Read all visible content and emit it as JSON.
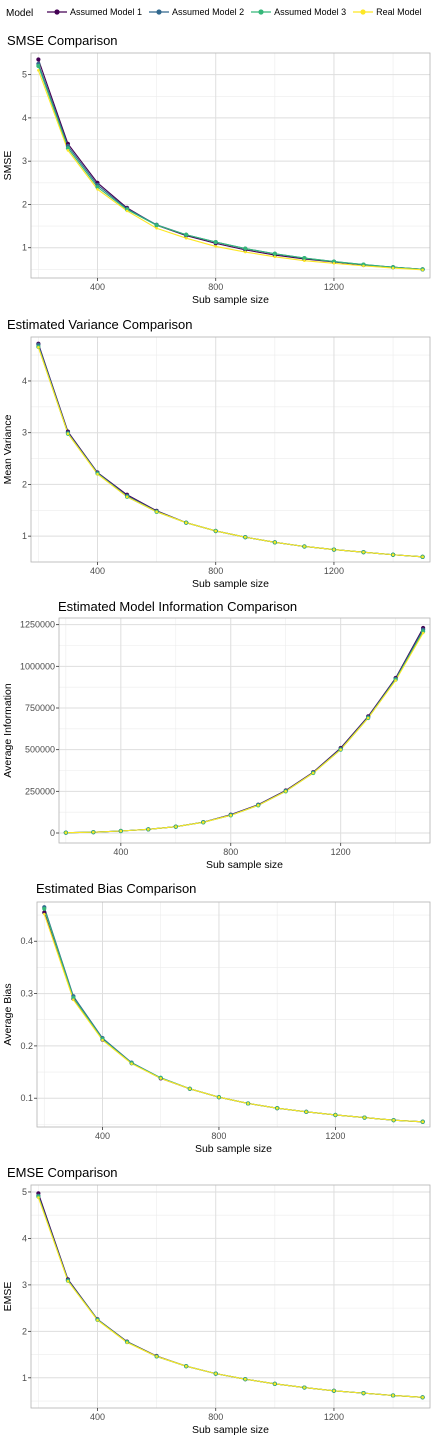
{
  "legend": {
    "title": "Model",
    "items": [
      {
        "label": "Assumed Model 1",
        "color": "#440154"
      },
      {
        "label": "Assumed Model 2",
        "color": "#31688E"
      },
      {
        "label": "Assumed Model 3",
        "color": "#35B779"
      },
      {
        "label": "Real Model",
        "color": "#FDE725"
      }
    ]
  },
  "chart_data": [
    {
      "type": "line",
      "title": "SMSE Comparison",
      "xlabel": "Sub sample size",
      "ylabel": "SMSE",
      "xlim": [
        175,
        1525
      ],
      "ylim": [
        0.3,
        5.5
      ],
      "xticks": [
        400,
        800,
        1200
      ],
      "yticks": [
        1,
        2,
        3,
        4,
        5
      ],
      "grid": true,
      "x": [
        200,
        300,
        400,
        500,
        600,
        700,
        800,
        900,
        1000,
        1100,
        1200,
        1300,
        1400,
        1500
      ],
      "series": [
        {
          "name": "Assumed Model 1",
          "values": [
            5.35,
            3.4,
            2.5,
            1.92,
            1.52,
            1.28,
            1.1,
            0.95,
            0.83,
            0.74,
            0.67,
            0.6,
            0.55,
            0.5
          ]
        },
        {
          "name": "Assumed Model 2",
          "values": [
            5.25,
            3.35,
            2.45,
            1.9,
            1.53,
            1.3,
            1.13,
            0.98,
            0.86,
            0.76,
            0.68,
            0.61,
            0.55,
            0.5
          ]
        },
        {
          "name": "Assumed Model 3",
          "values": [
            5.2,
            3.3,
            2.4,
            1.88,
            1.52,
            1.3,
            1.13,
            0.98,
            0.86,
            0.76,
            0.68,
            0.61,
            0.55,
            0.5
          ]
        },
        {
          "name": "Real Model",
          "values": [
            5.1,
            3.25,
            2.35,
            1.85,
            1.45,
            1.22,
            1.03,
            0.9,
            0.79,
            0.7,
            0.64,
            0.58,
            0.53,
            0.49
          ]
        }
      ]
    },
    {
      "type": "line",
      "title": "Estimated Variance Comparison",
      "xlabel": "Sub sample size",
      "ylabel": "Mean Variance",
      "xlim": [
        175,
        1525
      ],
      "ylim": [
        0.5,
        4.85
      ],
      "xticks": [
        400,
        800,
        1200
      ],
      "yticks": [
        1,
        2,
        3,
        4
      ],
      "grid": true,
      "x": [
        200,
        300,
        400,
        500,
        600,
        700,
        800,
        900,
        1000,
        1100,
        1200,
        1300,
        1400,
        1500
      ],
      "series": [
        {
          "name": "Assumed Model 1",
          "values": [
            4.72,
            3.02,
            2.23,
            1.8,
            1.49,
            1.26,
            1.1,
            0.98,
            0.88,
            0.8,
            0.74,
            0.69,
            0.64,
            0.6
          ]
        },
        {
          "name": "Assumed Model 2",
          "values": [
            4.7,
            3.0,
            2.22,
            1.78,
            1.48,
            1.26,
            1.1,
            0.98,
            0.88,
            0.8,
            0.74,
            0.69,
            0.64,
            0.6
          ]
        },
        {
          "name": "Assumed Model 3",
          "values": [
            4.66,
            2.98,
            2.21,
            1.76,
            1.47,
            1.26,
            1.1,
            0.98,
            0.88,
            0.8,
            0.74,
            0.69,
            0.64,
            0.6
          ]
        },
        {
          "name": "Real Model",
          "values": [
            4.65,
            2.98,
            2.2,
            1.76,
            1.47,
            1.26,
            1.1,
            0.98,
            0.88,
            0.8,
            0.74,
            0.69,
            0.64,
            0.6
          ]
        }
      ]
    },
    {
      "type": "line",
      "title": "Estimated Model Information Comparison",
      "xlabel": "Sub sample size",
      "ylabel": "Average Information",
      "xlim": [
        175,
        1525
      ],
      "ylim": [
        -60000,
        1290000
      ],
      "xticks": [
        400,
        800,
        1200
      ],
      "yticks": [
        0,
        250000,
        500000,
        750000,
        1000000,
        1250000
      ],
      "grid": true,
      "x": [
        200,
        300,
        400,
        500,
        600,
        700,
        800,
        900,
        1000,
        1100,
        1200,
        1300,
        1400,
        1500
      ],
      "series": [
        {
          "name": "Assumed Model 1",
          "values": [
            2000,
            5000,
            12000,
            22000,
            38000,
            65000,
            110000,
            170000,
            255000,
            365000,
            510000,
            700000,
            930000,
            1230000
          ]
        },
        {
          "name": "Assumed Model 2",
          "values": [
            2000,
            5000,
            12000,
            22000,
            38000,
            65000,
            108000,
            168000,
            252000,
            362000,
            505000,
            695000,
            925000,
            1220000
          ]
        },
        {
          "name": "Assumed Model 3",
          "values": [
            2000,
            5000,
            12000,
            22000,
            38000,
            64000,
            106000,
            166000,
            250000,
            360000,
            500000,
            690000,
            920000,
            1210000
          ]
        },
        {
          "name": "Real Model",
          "values": [
            2000,
            5000,
            12000,
            22000,
            38000,
            64000,
            106000,
            166000,
            250000,
            360000,
            500000,
            690000,
            915000,
            1200000
          ]
        }
      ]
    },
    {
      "type": "line",
      "title": "Estimated Bias Comparison",
      "xlabel": "Sub sample size",
      "ylabel": "Average Bias",
      "xlim": [
        175,
        1525
      ],
      "ylim": [
        0.045,
        0.475
      ],
      "xticks": [
        400,
        800,
        1200
      ],
      "yticks": [
        0.1,
        0.2,
        0.3,
        0.4
      ],
      "grid": true,
      "x": [
        200,
        300,
        400,
        500,
        600,
        700,
        800,
        900,
        1000,
        1100,
        1200,
        1300,
        1400,
        1500
      ],
      "series": [
        {
          "name": "Assumed Model 1",
          "values": [
            0.455,
            0.29,
            0.212,
            0.167,
            0.138,
            0.118,
            0.102,
            0.09,
            0.081,
            0.074,
            0.068,
            0.063,
            0.058,
            0.055
          ]
        },
        {
          "name": "Assumed Model 2",
          "values": [
            0.465,
            0.295,
            0.215,
            0.168,
            0.139,
            0.118,
            0.102,
            0.09,
            0.081,
            0.074,
            0.068,
            0.063,
            0.058,
            0.055
          ]
        },
        {
          "name": "Assumed Model 3",
          "values": [
            0.462,
            0.292,
            0.213,
            0.167,
            0.139,
            0.118,
            0.102,
            0.09,
            0.081,
            0.074,
            0.068,
            0.063,
            0.058,
            0.055
          ]
        },
        {
          "name": "Real Model",
          "values": [
            0.452,
            0.288,
            0.211,
            0.166,
            0.138,
            0.118,
            0.102,
            0.09,
            0.081,
            0.074,
            0.068,
            0.063,
            0.058,
            0.055
          ]
        }
      ]
    },
    {
      "type": "line",
      "title": "EMSE Comparison",
      "xlabel": "Sub sample size",
      "ylabel": "EMSE",
      "xlim": [
        175,
        1525
      ],
      "ylim": [
        0.35,
        5.15
      ],
      "xticks": [
        400,
        800,
        1200
      ],
      "yticks": [
        1,
        2,
        3,
        4,
        5
      ],
      "grid": true,
      "x": [
        200,
        300,
        400,
        500,
        600,
        700,
        800,
        900,
        1000,
        1100,
        1200,
        1300,
        1400,
        1500
      ],
      "series": [
        {
          "name": "Assumed Model 1",
          "values": [
            4.97,
            3.12,
            2.26,
            1.78,
            1.47,
            1.25,
            1.09,
            0.97,
            0.87,
            0.79,
            0.72,
            0.67,
            0.62,
            0.58
          ]
        },
        {
          "name": "Assumed Model 2",
          "values": [
            4.92,
            3.1,
            2.25,
            1.77,
            1.46,
            1.25,
            1.09,
            0.97,
            0.87,
            0.79,
            0.72,
            0.67,
            0.62,
            0.58
          ]
        },
        {
          "name": "Assumed Model 3",
          "values": [
            4.9,
            3.09,
            2.25,
            1.77,
            1.46,
            1.25,
            1.09,
            0.97,
            0.87,
            0.79,
            0.72,
            0.67,
            0.62,
            0.58
          ]
        },
        {
          "name": "Real Model",
          "values": [
            4.88,
            3.08,
            2.24,
            1.76,
            1.46,
            1.25,
            1.09,
            0.97,
            0.87,
            0.79,
            0.72,
            0.67,
            0.62,
            0.58
          ]
        }
      ]
    }
  ]
}
